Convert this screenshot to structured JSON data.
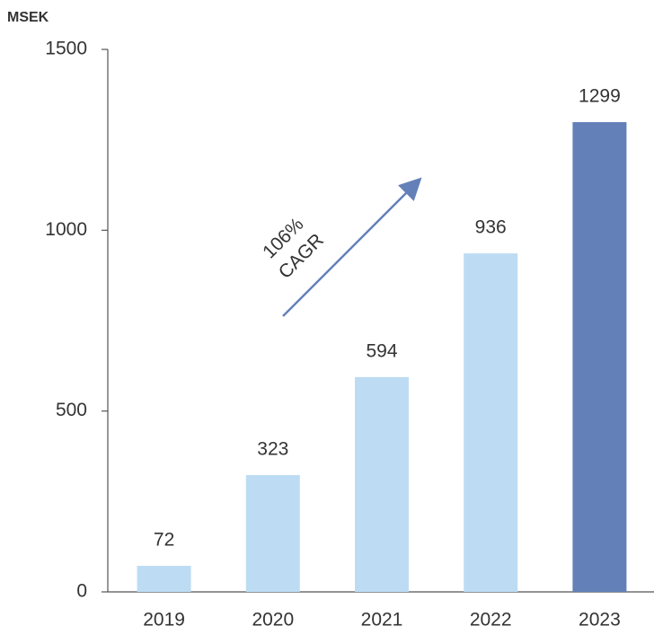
{
  "chart_data": {
    "type": "bar",
    "y_label": "MSEK",
    "categories": [
      "2019",
      "2020",
      "2021",
      "2022",
      "2023"
    ],
    "values": [
      72,
      323,
      594,
      936,
      1299
    ],
    "colors": [
      "#bddcf3",
      "#bddcf3",
      "#bddcf3",
      "#bddcf3",
      "#6480b8"
    ],
    "ylim": [
      0,
      1500
    ],
    "yticks": [
      0,
      500,
      1000,
      1500
    ],
    "annotation": [
      "106%",
      "CAGR"
    ],
    "annotation_color": "#6480b8"
  }
}
